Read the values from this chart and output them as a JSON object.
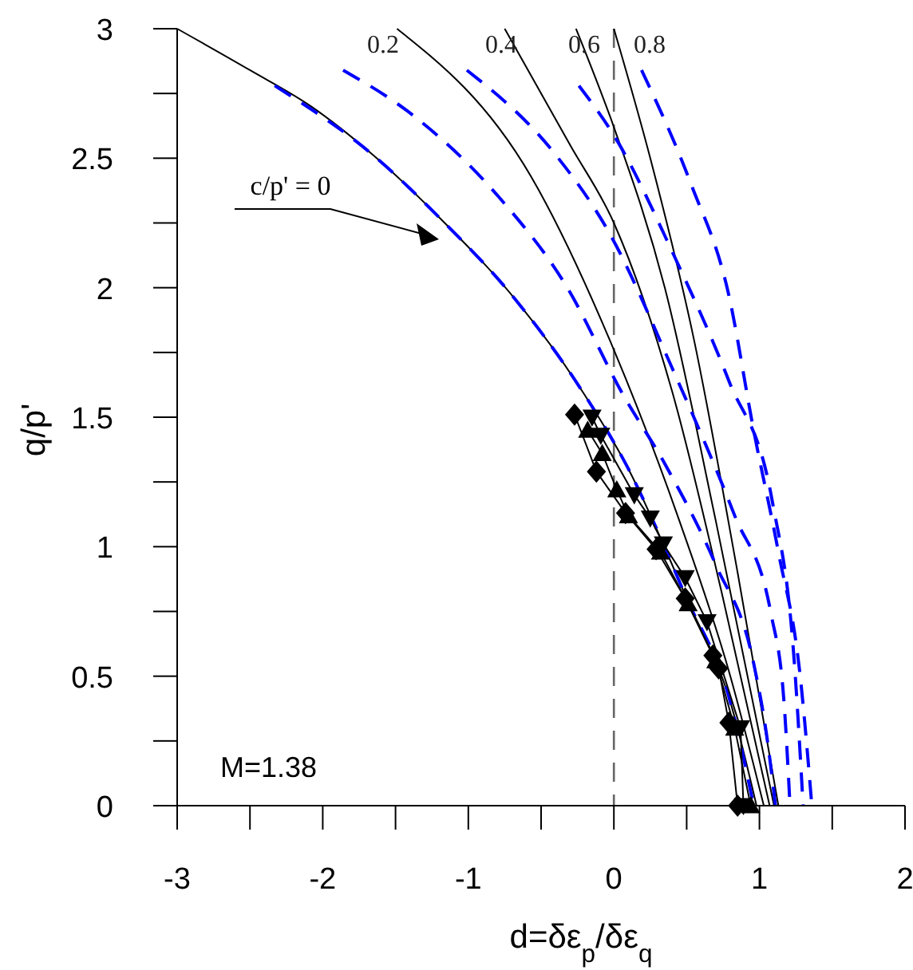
{
  "chart_data": {
    "type": "line",
    "xlabel": "d=δε$_{p}$/δε$_{q}$",
    "ylabel": "q/p'",
    "xlim": [
      -3,
      2
    ],
    "ylim": [
      0,
      3
    ],
    "xticks": [
      -3,
      {
        "value": -2.5,
        "label": null
      },
      -2,
      {
        "value": -1.5,
        "label": null
      },
      -1,
      {
        "value": -0.5,
        "label": null
      },
      0,
      {
        "value": 0.5,
        "label": null
      },
      1,
      {
        "value": 1.5,
        "label": null
      },
      2
    ],
    "yticks": [
      0,
      {
        "value": 0.25,
        "label": null
      },
      {
        "value": 0.5,
        "label": "0.5"
      },
      {
        "value": 0.75,
        "label": null
      },
      1,
      {
        "value": 1.25,
        "label": null
      },
      {
        "value": 1.5,
        "label": "1.5"
      },
      {
        "value": 1.75,
        "label": null
      },
      2,
      {
        "value": 2.25,
        "label": null
      },
      {
        "value": 2.5,
        "label": "2.5"
      },
      {
        "value": 2.75,
        "label": null
      },
      3
    ],
    "grid": false,
    "ref_lines": [
      {
        "axis": "x",
        "value": 0,
        "color": "#666666",
        "line_style": "dashed"
      }
    ],
    "annotations": [
      "c/p' = 0",
      "0.2",
      "0.4",
      "0.6",
      "0.8",
      "M=1.38"
    ],
    "series": [
      {
        "color": "#000000",
        "line_style": "solid",
        "marker": "none",
        "x": [
          -3,
          -2.5,
          -2.08,
          -1.65,
          -1.18,
          -0.67,
          -0.24,
          0.1,
          0.5,
          0.8,
          0.98
        ],
        "values": [
          3,
          2.84,
          2.7,
          2.51,
          2.26,
          1.95,
          1.62,
          1.3,
          0.8,
          0.4,
          0
        ]
      },
      {
        "color": "#000000",
        "line_style": "solid",
        "marker": "none",
        "x": [
          -1.49,
          -0.57,
          0,
          0.45,
          0.8,
          1.03
        ],
        "values": [
          3,
          2.43,
          1.76,
          1.1,
          0.5,
          0
        ]
      },
      {
        "color": "#000000",
        "line_style": "solid",
        "marker": "none",
        "x": [
          -0.75,
          -0.3,
          0,
          0.4,
          0.75,
          1.07
        ],
        "values": [
          3,
          2.55,
          2.25,
          1.6,
          0.8,
          0
        ]
      },
      {
        "color": "#000000",
        "line_style": "solid",
        "marker": "none",
        "x": [
          -0.26,
          0,
          0.35,
          0.7,
          1.1
        ],
        "values": [
          3,
          2.62,
          2,
          1.1,
          0
        ]
      },
      {
        "color": "#000000",
        "line_style": "solid",
        "marker": "none",
        "x": [
          0,
          0.25,
          0.55,
          0.85,
          1.13
        ],
        "values": [
          3,
          2.5,
          1.8,
          0.9,
          0
        ]
      },
      {
        "color": "#0000ff",
        "line_style": "dashed",
        "marker": "none",
        "x": [
          -2.33,
          -1.65,
          -1.18,
          -0.67,
          -0.24,
          0.1,
          0.5,
          0.8,
          0.96
        ],
        "values": [
          2.78,
          2.51,
          2.26,
          1.95,
          1.62,
          1.3,
          0.8,
          0.4,
          0
        ]
      },
      {
        "color": "#0000ff",
        "line_style": "dashed",
        "marker": "none",
        "x": [
          -1.86,
          -1.39,
          -0.79,
          -0.32,
          0.06,
          0.36,
          0.7,
          0.96,
          1.05,
          1.11
        ],
        "values": [
          2.84,
          2.67,
          2.35,
          2,
          1.59,
          1.31,
          0.93,
          0.55,
          0.27,
          0
        ]
      },
      {
        "color": "#0000ff",
        "line_style": "dashed",
        "marker": "none",
        "x": [
          -1.01,
          -0.41,
          -0.03,
          0.4,
          0.83,
          1.08,
          1.17,
          1.21
        ],
        "values": [
          2.84,
          2.52,
          2.21,
          1.69,
          1.12,
          0.74,
          0.39,
          0
        ]
      },
      {
        "color": "#0000ff",
        "line_style": "dashed",
        "marker": "none",
        "x": [
          -0.24,
          0.02,
          0.4,
          0.79,
          1.09,
          1.24,
          1.3
        ],
        "values": [
          2.78,
          2.57,
          2.14,
          1.64,
          1.17,
          0.55,
          0
        ]
      },
      {
        "color": "#0000ff",
        "line_style": "dashed",
        "marker": "none",
        "x": [
          0.19,
          0.53,
          0.79,
          0.96,
          1.13,
          1.28,
          1.36
        ],
        "values": [
          2.84,
          2.4,
          1.97,
          1.45,
          0.98,
          0.5,
          0
        ]
      },
      {
        "color": "#000000",
        "line_style": "solid",
        "marker": "diamond",
        "x": [
          -0.27,
          -0.12,
          0.08,
          0.29,
          0.49,
          0.68,
          0.72,
          0.79,
          0.85
        ],
        "values": [
          1.51,
          1.29,
          1.13,
          0.99,
          0.8,
          0.58,
          0.53,
          0.32,
          0
        ]
      },
      {
        "color": "#000000",
        "line_style": "solid",
        "marker": "triangle",
        "x": [
          -0.18,
          -0.08,
          0.02,
          0.1,
          0.32,
          0.51,
          0.7,
          0.83,
          0.94
        ],
        "values": [
          1.45,
          1.36,
          1.22,
          1.12,
          0.98,
          0.78,
          0.56,
          0.3,
          0
        ]
      },
      {
        "color": "#000000",
        "line_style": "solid",
        "marker": "triangle-down",
        "x": [
          -0.15,
          -0.09,
          0.14,
          0.25,
          0.34,
          0.49,
          0.64,
          0.87,
          0.89
        ],
        "values": [
          1.5,
          1.43,
          1.2,
          1.11,
          1.01,
          0.88,
          0.71,
          0.3,
          0
        ]
      }
    ]
  }
}
